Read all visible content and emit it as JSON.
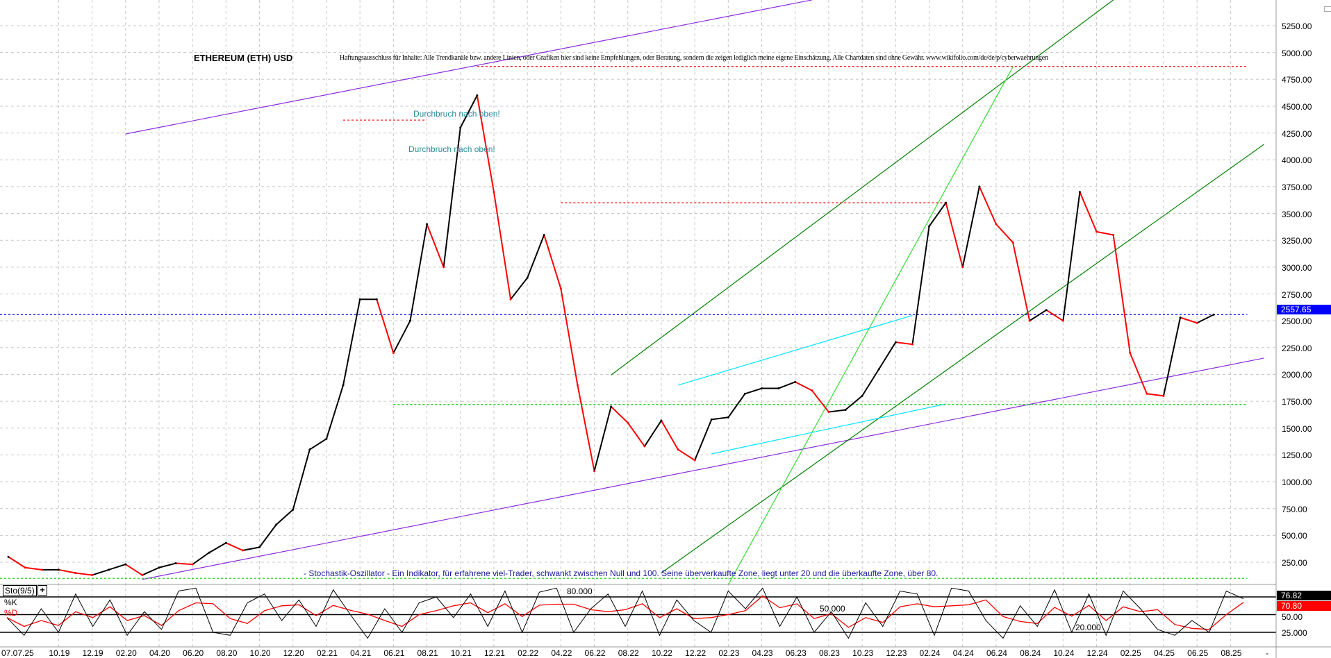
{
  "chart_data": {
    "type": "line",
    "title": "ETHEREUM (ETH) USD",
    "disclaimer": "Haftungsausschluss für Inhalte: Alle Trendkanäle bzw. andere Linien, oder Grafiken hier sind keine Empfehlungen, oder Beratung, sondern die zeigen lediglich meine eigene Einschätzung. Alle Chartdaten sind ohne Gewähr.  www.wikifolio.com/de/de/p/cyberwaehrungen",
    "annotations": [
      "Durchbruch nach oben!",
      "Durchbruch nach oben!"
    ],
    "stochastic_description": "- Stochastik-Oszillator - Ein Indikator, für erfahrene viel-Trader, schwankt zwischen Null und 100. Seine überverkaufte Zone, liegt unter 20 und die überkaufte Zone, über 80.",
    "grid": true,
    "price_axis": {
      "ylim": [
        0,
        5250
      ],
      "ticks": [
        "5250.00",
        "5000.00",
        "4750.00",
        "4500.00",
        "4250.00",
        "4000.00",
        "3750.00",
        "3500.00",
        "3250.00",
        "3000.00",
        "2750.00",
        "2500.00",
        "2250.00",
        "2000.00",
        "1750.00",
        "1500.00",
        "1250.00",
        "1000.00",
        "750.00",
        "500.00",
        "250.00"
      ],
      "last_price": "2557.65",
      "last_price_color": "#0000ff"
    },
    "x_axis": {
      "ticks": [
        "07.07.25",
        "10.19",
        "12.19",
        "02.20",
        "04.20",
        "06.20",
        "08.20",
        "10.20",
        "12.20",
        "02.21",
        "04.21",
        "06.21",
        "08.21",
        "10.21",
        "12.21",
        "02.22",
        "04.22",
        "06.22",
        "08.22",
        "10.22",
        "12.22",
        "02.23",
        "04.23",
        "06.23",
        "08.23",
        "10.23",
        "12.23",
        "02.24",
        "04.24",
        "06.24",
        "08.24",
        "10.24",
        "12.24",
        "02.25",
        "04.25",
        "06.25",
        "08.25"
      ],
      "tick_dates": [
        "2019-07",
        "2019-10",
        "2019-12",
        "2020-02",
        "2020-04",
        "2020-06",
        "2020-08",
        "2020-10",
        "2020-12",
        "2021-02",
        "2021-04",
        "2021-06",
        "2021-08",
        "2021-10",
        "2021-12",
        "2022-02",
        "2022-04",
        "2022-06",
        "2022-08",
        "2022-10",
        "2022-12",
        "2023-02",
        "2023-04",
        "2023-06",
        "2023-08",
        "2023-10",
        "2023-12",
        "2024-02",
        "2024-04",
        "2024-06",
        "2024-08",
        "2024-10",
        "2024-12",
        "2025-02",
        "2025-04",
        "2025-06",
        "2025-08"
      ],
      "end_marker": "-"
    },
    "series": [
      {
        "up_color": "#000000",
        "down_color": "#ff0000",
        "x": [
          "2019-07",
          "2019-08",
          "2019-09",
          "2019-10",
          "2019-11",
          "2019-12",
          "2020-01",
          "2020-02",
          "2020-03",
          "2020-04",
          "2020-05",
          "2020-06",
          "2020-07",
          "2020-08",
          "2020-09",
          "2020-10",
          "2020-11",
          "2020-12",
          "2021-01",
          "2021-02",
          "2021-03",
          "2021-04",
          "2021-05",
          "2021-06",
          "2021-07",
          "2021-08",
          "2021-09",
          "2021-10",
          "2021-11",
          "2021-12",
          "2022-01",
          "2022-02",
          "2022-03",
          "2022-04",
          "2022-05",
          "2022-06",
          "2022-07",
          "2022-08",
          "2022-09",
          "2022-10",
          "2022-11",
          "2022-12",
          "2023-01",
          "2023-02",
          "2023-03",
          "2023-04",
          "2023-05",
          "2023-06",
          "2023-07",
          "2023-08",
          "2023-09",
          "2023-10",
          "2023-11",
          "2023-12",
          "2024-01",
          "2024-02",
          "2024-03",
          "2024-04",
          "2024-05",
          "2024-06",
          "2024-07",
          "2024-08",
          "2024-09",
          "2024-10",
          "2024-11",
          "2024-12",
          "2025-01",
          "2025-02",
          "2025-03",
          "2025-04",
          "2025-05",
          "2025-06",
          "2025-07"
        ],
        "values": [
          300,
          200,
          180,
          180,
          150,
          130,
          180,
          230,
          130,
          200,
          240,
          230,
          340,
          430,
          360,
          390,
          600,
          740,
          1300,
          1400,
          1900,
          2700,
          2700,
          2200,
          2500,
          3400,
          3000,
          4300,
          4600,
          3700,
          2700,
          2900,
          3300,
          2800,
          1900,
          1100,
          1700,
          1550,
          1330,
          1570,
          1300,
          1200,
          1580,
          1600,
          1820,
          1870,
          1870,
          1930,
          1850,
          1650,
          1670,
          1800,
          2050,
          2300,
          2280,
          3380,
          3600,
          3000,
          3750,
          3400,
          3230,
          2500,
          2600,
          2500,
          3700,
          3330,
          3300,
          2200,
          1820,
          1800,
          2530,
          2480,
          2557.65
        ]
      }
    ],
    "trendlines": [
      {
        "color": "#8a2be2",
        "style": "solid",
        "from": [
          "2020-02",
          4241
        ],
        "to": [
          "2023-07",
          5490
        ]
      },
      {
        "color": "#8a2be2",
        "style": "solid",
        "from": [
          "2020-03",
          90
        ],
        "to": [
          "2025-10",
          2152
        ]
      },
      {
        "color": "#008000",
        "style": "solid",
        "from": [
          "2022-07",
          1995
        ],
        "to": [
          "2025-01",
          5490
        ]
      },
      {
        "color": "#008000",
        "style": "solid",
        "from": [
          "2022-10",
          150
        ],
        "to": [
          "2025-10",
          4144
        ]
      },
      {
        "color": "#33dd33",
        "style": "solid",
        "from": [
          "2023-02",
          40
        ],
        "to": [
          "2024-07",
          4866
        ]
      },
      {
        "color": "#00e5ff",
        "style": "solid",
        "from": [
          "2022-11",
          1900
        ],
        "to": [
          "2024-01",
          2550
        ]
      },
      {
        "color": "#00e5ff",
        "style": "solid",
        "from": [
          "2023-01",
          1260
        ],
        "to": [
          "2024-03",
          1725
        ]
      },
      {
        "color": "#ff0000",
        "style": "dotted",
        "from": [
          "2021-11",
          4870
        ],
        "to": [
          "2025-09",
          4870
        ]
      },
      {
        "color": "#ff0000",
        "style": "dotted",
        "from": [
          "2022-04",
          3600
        ],
        "to": [
          "2024-03",
          3600
        ]
      },
      {
        "color": "#ff0000",
        "style": "dotted",
        "from": [
          "2021-03",
          4370
        ],
        "to": [
          "2021-08",
          4370
        ]
      },
      {
        "color": "#00cc00",
        "style": "dotted",
        "from": [
          "2021-06",
          1720
        ],
        "to": [
          "2025-09",
          1720
        ]
      },
      {
        "color": "#00cc00",
        "style": "dotted",
        "from": [
          "2019-06",
          100
        ],
        "to": [
          "2025-09",
          100
        ]
      },
      {
        "color": "#0000ff",
        "style": "dotted",
        "from": [
          "2019-06",
          2557.65
        ],
        "to": [
          "2025-09",
          2557.65
        ]
      }
    ],
    "stochastic": {
      "label": "Sto(9/5)",
      "add_button": "+",
      "k_label": "%K",
      "d_label": "%D",
      "k_color": "#000000",
      "d_color": "#ff0000",
      "k_last": "76.82",
      "d_last": "70.80",
      "levels": [
        80,
        50,
        20
      ],
      "level_labels": [
        "80.000",
        "50.000",
        "20.000"
      ],
      "axis_ticks": [
        "50.00",
        "25.000"
      ],
      "k_values": [
        45,
        15,
        60,
        20,
        85,
        30,
        75,
        15,
        55,
        25,
        90,
        95,
        20,
        15,
        70,
        85,
        40,
        75,
        30,
        92,
        50,
        10,
        60,
        20,
        70,
        80,
        45,
        85,
        30,
        90,
        20,
        88,
        95,
        20,
        60,
        85,
        30,
        90,
        15,
        75,
        40,
        20,
        90,
        60,
        95,
        30,
        80,
        20,
        55,
        10,
        70,
        30,
        90,
        85,
        15,
        95,
        90,
        40,
        10,
        65,
        30,
        92,
        20,
        85,
        15,
        90,
        60,
        25,
        15,
        40,
        20,
        90,
        76.82
      ]
    }
  }
}
